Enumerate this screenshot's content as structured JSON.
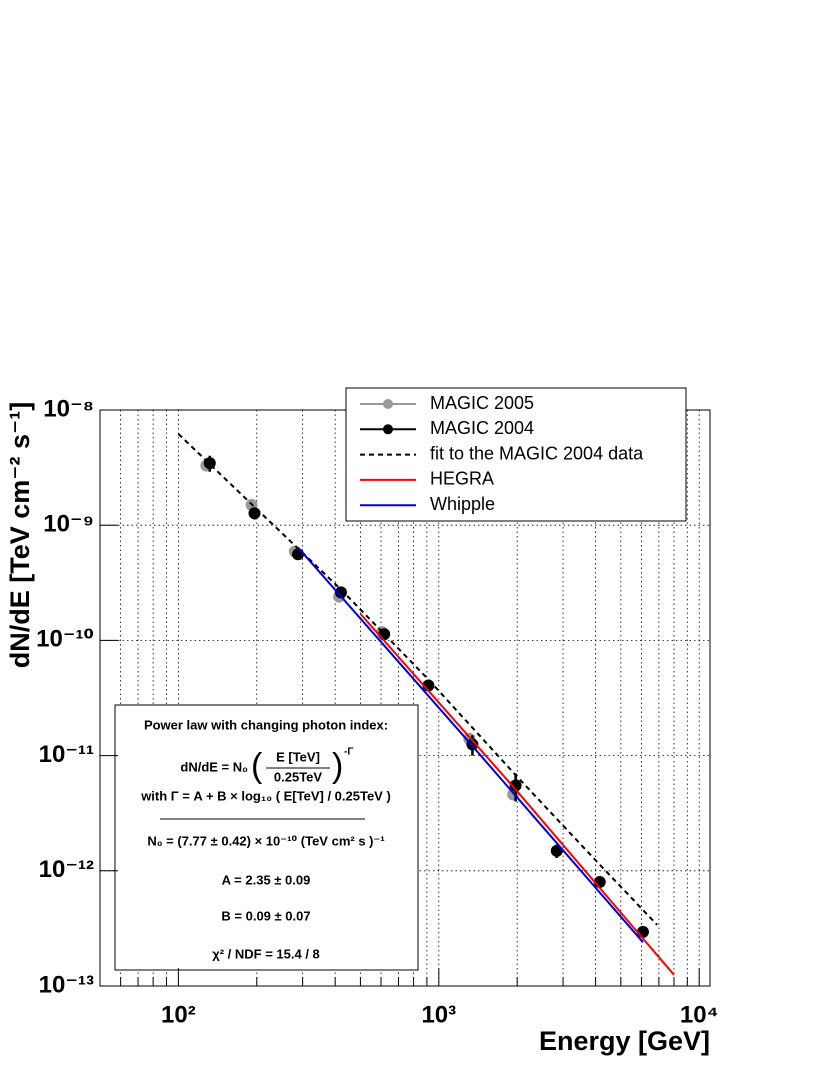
{
  "chart_data": {
    "type": "line",
    "x_label": "Energy [GeV]",
    "y_label": "dN/dE [TeV cm⁻² s⁻¹]",
    "log_x": true,
    "log_y": true,
    "grid": true,
    "xlim": [
      50,
      11000
    ],
    "ylim": [
      1e-13,
      1e-08
    ],
    "xticks": [
      {
        "value": 100,
        "label": "10²"
      },
      {
        "value": 1000,
        "label": "10³"
      },
      {
        "value": 10000,
        "label": "10⁴"
      }
    ],
    "xminorticks": [
      60,
      70,
      80,
      90,
      200,
      300,
      400,
      500,
      600,
      700,
      800,
      900,
      2000,
      3000,
      4000,
      5000,
      6000,
      7000,
      8000,
      9000
    ],
    "yticks": [
      {
        "value": 1e-13,
        "label": "10⁻¹³"
      },
      {
        "value": 1e-12,
        "label": "10⁻¹²"
      },
      {
        "value": 1e-11,
        "label": "10⁻¹¹"
      },
      {
        "value": 1e-10,
        "label": "10⁻¹⁰"
      },
      {
        "value": 1e-09,
        "label": "10⁻⁹"
      },
      {
        "value": 1e-08,
        "label": "10⁻⁸"
      }
    ],
    "legend": "top-right",
    "series": [
      {
        "name": "MAGIC 2005",
        "color": "#999999",
        "style": "markers",
        "x": [
          128,
          191,
          280,
          414,
          606,
          1310,
          1930
        ],
        "values": [
          3.3e-09,
          1.5e-09,
          5.9e-10,
          2.4e-10,
          1.18e-10,
          1.4e-11,
          4.6e-12
        ]
      },
      {
        "name": "MAGIC 2004",
        "color": "#000000",
        "style": "markers",
        "x": [
          132,
          196,
          288,
          421,
          617,
          912,
          1346,
          1972,
          2838,
          4150,
          6080
        ],
        "values": [
          3.46e-09,
          1.27e-09,
          5.6e-10,
          2.61e-10,
          1.13e-10,
          4.06e-11,
          1.25e-11,
          5.5e-12,
          1.49e-12,
          8e-13,
          2.95e-13
        ],
        "errors": [
          5.5e-10,
          1.5e-10,
          6e-11,
          2.5e-11,
          1.2e-11,
          4e-12,
          2.5e-12,
          1.5e-12,
          2e-13,
          6e-14,
          3e-14
        ]
      },
      {
        "name": "fit to the MAGIC 2004 data",
        "color": "#000000",
        "style": "dashed",
        "x": [
          100,
          196,
          421,
          912,
          1970,
          4150,
          6890
        ],
        "values": [
          6.2e-09,
          1.44e-09,
          2.77e-10,
          4.58e-11,
          6.8e-12,
          1.13e-12,
          3.4e-13
        ]
      },
      {
        "name": "HEGRA",
        "color": "#ff0000",
        "style": "solid",
        "x": [
          500,
          1970,
          8000
        ],
        "values": [
          1.7e-10,
          5.1e-12,
          1.25e-13
        ]
      },
      {
        "name": "Whipple",
        "color": "#0000dd",
        "style": "solid",
        "x": [
          288,
          1330,
          6080
        ],
        "values": [
          6.4e-10,
          1.25e-11,
          2.4e-13
        ]
      }
    ],
    "annotation": {
      "title": "Power law with changing photon index:",
      "formula_lhs": "dN/dE = N₀",
      "formula_num": "E [TeV]",
      "formula_den": "0.25TeV",
      "formula_exp": "-Γ",
      "gamma_def": "with Γ = A + B × log₁₀ ( E[TeV] / 0.25TeV )",
      "n0": "N₀ = (7.77 ± 0.42) × 10⁻¹⁰ (TeV cm² s )⁻¹",
      "a": "A = 2.35 ± 0.09",
      "b": "B = 0.09 ± 0.07",
      "chi2": "χ² / NDF = 15.4 / 8"
    }
  }
}
